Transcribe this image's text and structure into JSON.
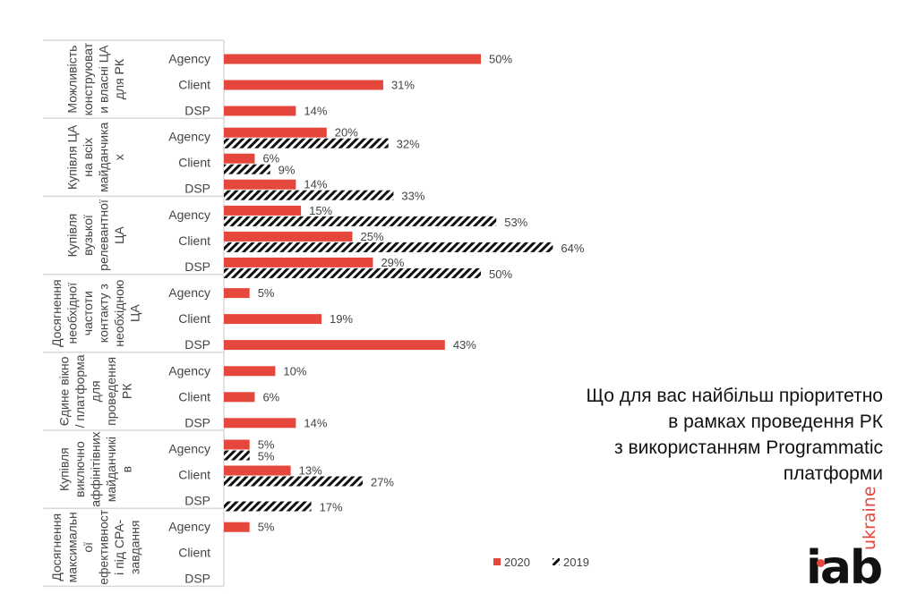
{
  "chart_data": {
    "type": "bar",
    "orientation": "horizontal",
    "title": [
      "Що для вас найбільш пріоритетно",
      "в рамках проведення РК",
      "з використанням Programmatic",
      "платформи"
    ],
    "groups": [
      {
        "label": [
          "Можливість",
          "конструюват",
          "и власні ЦА",
          "для РК"
        ]
      },
      {
        "label": [
          "Купівля ЦА",
          "на всіх",
          "майданчика",
          "х"
        ]
      },
      {
        "label": [
          "Купівля",
          "вузької",
          "релевантної",
          "ЦА"
        ]
      },
      {
        "label": [
          "Досягнення",
          "необхідної",
          "частоти",
          "контакту з",
          "необхідною",
          "ЦА"
        ]
      },
      {
        "label": [
          "Єдине вікно",
          "/ платформа",
          "для",
          "проведення",
          "РК"
        ]
      },
      {
        "label": [
          "Купівля",
          "виключно",
          "аффінітівних",
          "майданчикі",
          "в"
        ]
      },
      {
        "label": [
          "Досягнення",
          "максимальн",
          "ої",
          "ефективност",
          "і під CPA-",
          "завдання"
        ]
      }
    ],
    "categories": [
      "Agency",
      "Client",
      "DSP"
    ],
    "series": [
      {
        "name": "2020",
        "color": "#e5473c",
        "pattern": "solid",
        "values": [
          [
            50,
            31,
            14
          ],
          [
            20,
            6,
            14
          ],
          [
            15,
            25,
            29
          ],
          [
            5,
            19,
            43
          ],
          [
            10,
            6,
            14
          ],
          [
            5,
            13,
            null
          ],
          [
            5,
            null,
            null
          ]
        ]
      },
      {
        "name": "2019",
        "color": "#111111",
        "pattern": "diagonal-hatch",
        "values": [
          [
            null,
            null,
            null
          ],
          [
            32,
            9,
            33
          ],
          [
            53,
            64,
            50
          ],
          [
            null,
            null,
            null
          ],
          [
            null,
            null,
            null
          ],
          [
            5,
            27,
            17
          ],
          [
            null,
            null,
            null
          ]
        ]
      }
    ],
    "value_suffix": "%",
    "xlim": [
      0,
      70
    ],
    "legend_position": "bottom-right",
    "grid": false
  },
  "logo": {
    "main": "iab",
    "sub": "ukraine"
  }
}
